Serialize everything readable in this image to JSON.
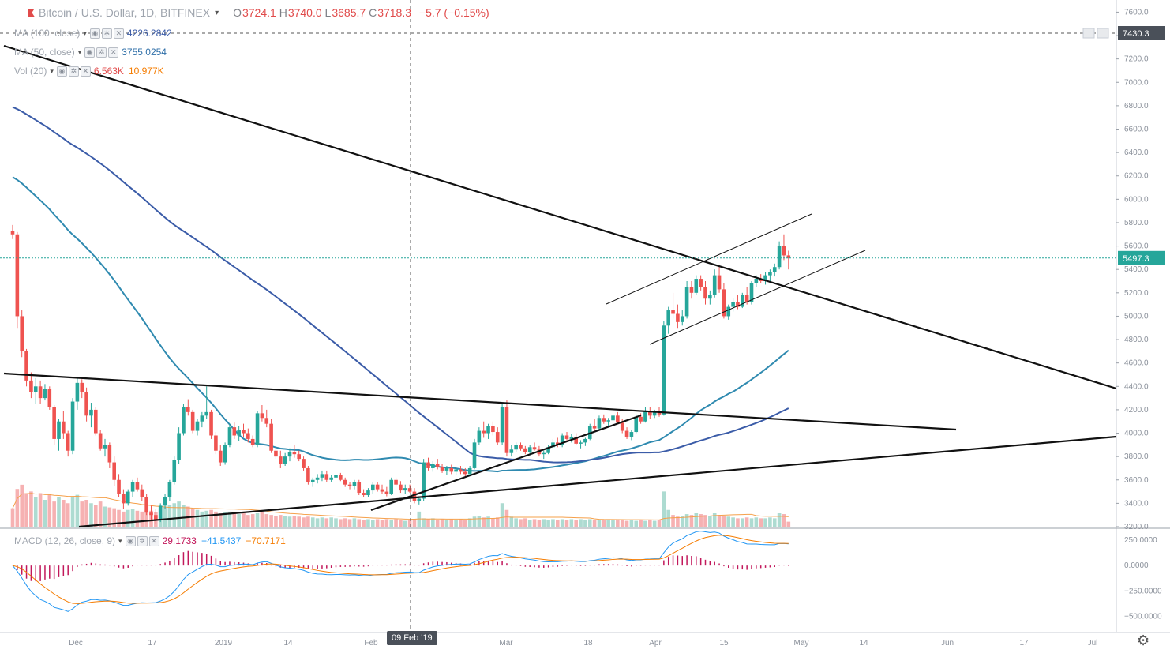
{
  "header": {
    "symbol": "Bitcoin / U.S. Dollar, 1D, BITFINEX",
    "open_label": "O",
    "open": "3724.1",
    "high_label": "H",
    "high": "3740.0",
    "low_label": "L",
    "low": "3685.7",
    "close_label": "C",
    "close": "3718.3",
    "change": "−5.7 (−0.15%)"
  },
  "indicators": {
    "ma100": {
      "label": "MA (100, close)",
      "value": "4226.2842"
    },
    "ma50": {
      "label": "MA (50, close)",
      "value": "3755.0254"
    },
    "vol": {
      "label": "Vol (20)",
      "value1": "6.563K",
      "value2": "10.977K"
    },
    "macd": {
      "label": "MACD (12, 26, close, 9)",
      "value1": "29.1733",
      "value2": "−41.5437",
      "value3": "−70.7171"
    }
  },
  "crosshair": {
    "date_label": "09 Feb '19",
    "price_label": "7430.3"
  },
  "last_price_label": "5497.3",
  "colors": {
    "up": "#26a69a",
    "down": "#ef5350",
    "ma50": "#2f8ab0",
    "ma100": "#3b5ca8",
    "macd": "#2196f3",
    "signal": "#f57c00",
    "hist": "#c2185b",
    "last": "#26a69a"
  },
  "chart_data": {
    "type": "candlestick",
    "price_axis_ticks": [
      "7600.0",
      "7400.0",
      "7200.0",
      "7000.0",
      "6800.0",
      "6600.0",
      "6400.0",
      "6200.0",
      "6000.0",
      "5800.0",
      "5600.0",
      "5400.0",
      "5200.0",
      "5000.0",
      "4800.0",
      "4600.0",
      "4400.0",
      "4200.0",
      "4000.0",
      "3800.0",
      "3600.0",
      "3400.0",
      "3200.0"
    ],
    "price_ylim": [
      3200,
      7650
    ],
    "macd_axis_ticks": [
      "250.0000",
      "0.0000",
      "−250.0000",
      "−500.0000"
    ],
    "macd_ylim": [
      -650,
      350
    ],
    "time_labels": [
      "Dec",
      "17",
      "2019",
      "14",
      "Feb",
      "Mar",
      "18",
      "Apr",
      "15",
      "May",
      "14",
      "Jun",
      "17",
      "Jul"
    ],
    "candles": [
      [
        5730,
        5780,
        5660,
        5700
      ],
      [
        5700,
        5720,
        4900,
        5000
      ],
      [
        5000,
        5050,
        4650,
        4700
      ],
      [
        4700,
        4720,
        4400,
        4450
      ],
      [
        4450,
        4520,
        4300,
        4350
      ],
      [
        4350,
        4470,
        4250,
        4400
      ],
      [
        4400,
        4450,
        4250,
        4300
      ],
      [
        4300,
        4420,
        4280,
        4380
      ],
      [
        4380,
        4400,
        4200,
        4220
      ],
      [
        4220,
        4240,
        3900,
        3950
      ],
      [
        3950,
        4120,
        3850,
        4100
      ],
      [
        4100,
        4190,
        3950,
        4000
      ],
      [
        4000,
        4020,
        3800,
        3850
      ],
      [
        3850,
        4300,
        3820,
        4270
      ],
      [
        4270,
        4470,
        4200,
        4430
      ],
      [
        4430,
        4460,
        4300,
        4350
      ],
      [
        4350,
        4390,
        4100,
        4150
      ],
      [
        4150,
        4260,
        4050,
        4200
      ],
      [
        4200,
        4220,
        3980,
        4000
      ],
      [
        4000,
        4030,
        3850,
        3870
      ],
      [
        3870,
        3950,
        3800,
        3900
      ],
      [
        3900,
        3920,
        3700,
        3750
      ],
      [
        3750,
        3800,
        3550,
        3600
      ],
      [
        3600,
        3650,
        3450,
        3480
      ],
      [
        3480,
        3520,
        3350,
        3400
      ],
      [
        3400,
        3520,
        3380,
        3500
      ],
      [
        3500,
        3600,
        3450,
        3580
      ],
      [
        3580,
        3620,
        3500,
        3520
      ],
      [
        3520,
        3560,
        3420,
        3450
      ],
      [
        3450,
        3480,
        3300,
        3320
      ],
      [
        3320,
        3380,
        3250,
        3300
      ],
      [
        3300,
        3350,
        3220,
        3260
      ],
      [
        3260,
        3400,
        3240,
        3380
      ],
      [
        3380,
        3480,
        3350,
        3450
      ],
      [
        3450,
        3600,
        3420,
        3580
      ],
      [
        3580,
        3800,
        3560,
        3770
      ],
      [
        3770,
        4050,
        3740,
        4000
      ],
      [
        4000,
        4250,
        3980,
        4220
      ],
      [
        4220,
        4290,
        4150,
        4180
      ],
      [
        4180,
        4200,
        4000,
        4020
      ],
      [
        4020,
        4120,
        3980,
        4100
      ],
      [
        4100,
        4180,
        4050,
        4150
      ],
      [
        4150,
        4400,
        4120,
        4180
      ],
      [
        4180,
        4200,
        3950,
        3980
      ],
      [
        3980,
        4010,
        3820,
        3850
      ],
      [
        3850,
        3900,
        3720,
        3750
      ],
      [
        3750,
        3920,
        3730,
        3900
      ],
      [
        3900,
        4080,
        3880,
        4050
      ],
      [
        4050,
        4090,
        3950,
        3980
      ],
      [
        3980,
        4060,
        3930,
        4030
      ],
      [
        4030,
        4080,
        3970,
        4000
      ],
      [
        4000,
        4040,
        3920,
        3950
      ],
      [
        3950,
        3980,
        3880,
        3900
      ],
      [
        3900,
        4190,
        3880,
        4170
      ],
      [
        4170,
        4240,
        4100,
        4130
      ],
      [
        4130,
        4200,
        4050,
        4080
      ],
      [
        4080,
        4120,
        3830,
        3850
      ],
      [
        3850,
        3880,
        3780,
        3800
      ],
      [
        3800,
        3850,
        3700,
        3740
      ],
      [
        3740,
        3830,
        3720,
        3800
      ],
      [
        3800,
        3870,
        3760,
        3840
      ],
      [
        3840,
        3900,
        3790,
        3820
      ],
      [
        3820,
        3850,
        3760,
        3780
      ],
      [
        3780,
        3800,
        3680,
        3700
      ],
      [
        3700,
        3720,
        3560,
        3580
      ],
      [
        3580,
        3620,
        3540,
        3600
      ],
      [
        3600,
        3650,
        3570,
        3620
      ],
      [
        3620,
        3680,
        3590,
        3650
      ],
      [
        3650,
        3680,
        3580,
        3600
      ],
      [
        3600,
        3640,
        3580,
        3620
      ],
      [
        3620,
        3660,
        3600,
        3640
      ],
      [
        3640,
        3660,
        3590,
        3600
      ],
      [
        3600,
        3620,
        3540,
        3560
      ],
      [
        3560,
        3580,
        3520,
        3550
      ],
      [
        3550,
        3600,
        3520,
        3580
      ],
      [
        3580,
        3600,
        3470,
        3490
      ],
      [
        3490,
        3520,
        3450,
        3470
      ],
      [
        3470,
        3530,
        3450,
        3510
      ],
      [
        3510,
        3580,
        3480,
        3560
      ],
      [
        3560,
        3580,
        3500,
        3520
      ],
      [
        3520,
        3560,
        3480,
        3500
      ],
      [
        3500,
        3540,
        3460,
        3480
      ],
      [
        3480,
        3620,
        3470,
        3600
      ],
      [
        3600,
        3620,
        3540,
        3560
      ],
      [
        3560,
        3590,
        3490,
        3510
      ],
      [
        3510,
        3560,
        3480,
        3530
      ],
      [
        3530,
        3560,
        3490,
        3500
      ],
      [
        3500,
        3530,
        3400,
        3420
      ],
      [
        3420,
        3460,
        3390,
        3440
      ],
      [
        3440,
        3780,
        3420,
        3750
      ],
      [
        3750,
        3790,
        3680,
        3700
      ],
      [
        3700,
        3760,
        3670,
        3740
      ],
      [
        3740,
        3780,
        3690,
        3710
      ],
      [
        3710,
        3740,
        3660,
        3680
      ],
      [
        3680,
        3720,
        3640,
        3700
      ],
      [
        3700,
        3730,
        3650,
        3670
      ],
      [
        3670,
        3710,
        3640,
        3690
      ],
      [
        3690,
        3720,
        3650,
        3670
      ],
      [
        3670,
        3700,
        3630,
        3650
      ],
      [
        3650,
        3720,
        3640,
        3700
      ],
      [
        3700,
        3950,
        3690,
        3920
      ],
      [
        3920,
        4050,
        3900,
        4020
      ],
      [
        4020,
        4100,
        3960,
        4000
      ],
      [
        4000,
        4080,
        3950,
        4060
      ],
      [
        4060,
        4100,
        3980,
        4010
      ],
      [
        4010,
        4050,
        3900,
        3920
      ],
      [
        3920,
        4250,
        3900,
        4220
      ],
      [
        4220,
        4280,
        3800,
        3830
      ],
      [
        3830,
        3900,
        3800,
        3860
      ],
      [
        3860,
        3920,
        3840,
        3900
      ],
      [
        3900,
        3920,
        3850,
        3870
      ],
      [
        3870,
        3890,
        3820,
        3840
      ],
      [
        3840,
        3900,
        3810,
        3880
      ],
      [
        3880,
        3920,
        3850,
        3860
      ],
      [
        3860,
        3890,
        3800,
        3820
      ],
      [
        3820,
        3850,
        3780,
        3830
      ],
      [
        3830,
        3900,
        3820,
        3880
      ],
      [
        3880,
        3950,
        3860,
        3920
      ],
      [
        3920,
        3960,
        3880,
        3900
      ],
      [
        3900,
        4000,
        3880,
        3980
      ],
      [
        3980,
        4010,
        3930,
        3950
      ],
      [
        3950,
        3990,
        3920,
        3970
      ],
      [
        3970,
        4000,
        3900,
        3910
      ],
      [
        3910,
        3940,
        3870,
        3920
      ],
      [
        3920,
        3960,
        3890,
        3950
      ],
      [
        3950,
        4080,
        3940,
        4060
      ],
      [
        4060,
        4120,
        4020,
        4040
      ],
      [
        4040,
        4150,
        4030,
        4130
      ],
      [
        4130,
        4160,
        4080,
        4100
      ],
      [
        4100,
        4130,
        4050,
        4110
      ],
      [
        4110,
        4180,
        4090,
        4150
      ],
      [
        4150,
        4180,
        4080,
        4090
      ],
      [
        4090,
        4120,
        4000,
        4020
      ],
      [
        4020,
        4050,
        3950,
        3970
      ],
      [
        3970,
        4030,
        3940,
        4010
      ],
      [
        4010,
        4160,
        4000,
        4140
      ],
      [
        4140,
        4170,
        4080,
        4100
      ],
      [
        4100,
        4220,
        4090,
        4190
      ],
      [
        4190,
        4220,
        4120,
        4150
      ],
      [
        4150,
        4200,
        4130,
        4180
      ],
      [
        4180,
        4220,
        4140,
        4160
      ],
      [
        4160,
        4960,
        4150,
        4920
      ],
      [
        4920,
        5080,
        4850,
        5050
      ],
      [
        5050,
        5200,
        4980,
        5020
      ],
      [
        5020,
        5100,
        4900,
        4950
      ],
      [
        4950,
        5050,
        4920,
        5000
      ],
      [
        5000,
        5300,
        4980,
        5250
      ],
      [
        5250,
        5300,
        5150,
        5200
      ],
      [
        5200,
        5350,
        5180,
        5320
      ],
      [
        5320,
        5350,
        5220,
        5250
      ],
      [
        5250,
        5300,
        5100,
        5150
      ],
      [
        5150,
        5220,
        5100,
        5180
      ],
      [
        5180,
        5400,
        5160,
        5350
      ],
      [
        5350,
        5420,
        5200,
        5230
      ],
      [
        5230,
        5280,
        4980,
        5000
      ],
      [
        5000,
        5100,
        4970,
        5080
      ],
      [
        5080,
        5150,
        5040,
        5120
      ],
      [
        5120,
        5180,
        5060,
        5080
      ],
      [
        5080,
        5200,
        5070,
        5180
      ],
      [
        5180,
        5250,
        5100,
        5120
      ],
      [
        5120,
        5300,
        5100,
        5280
      ],
      [
        5280,
        5350,
        5250,
        5320
      ],
      [
        5320,
        5360,
        5280,
        5300
      ],
      [
        5300,
        5380,
        5270,
        5350
      ],
      [
        5350,
        5400,
        5300,
        5380
      ],
      [
        5380,
        5450,
        5340,
        5420
      ],
      [
        5420,
        5640,
        5400,
        5600
      ],
      [
        5600,
        5700,
        5480,
        5520
      ],
      [
        5520,
        5560,
        5400,
        5497
      ]
    ],
    "volume": [
      2.2,
      4.5,
      5,
      4,
      4.2,
      3.5,
      4,
      3.2,
      3.8,
      3,
      3.5,
      3.2,
      2.8,
      3.6,
      3.8,
      3,
      3.2,
      2.8,
      2.6,
      3,
      2.4,
      2.3,
      2.2,
      2,
      1.8,
      2,
      2.1,
      1.9,
      1.8,
      2,
      1.9,
      1.7,
      2.2,
      2.4,
      2.6,
      2.8,
      3,
      2.6,
      2.4,
      2.2,
      2,
      1.8,
      1.9,
      2,
      1.8,
      1.6,
      1.7,
      1.8,
      1.6,
      1.5,
      1.6,
      1.4,
      1.5,
      1.6,
      1.7,
      1.5,
      1.4,
      1.3,
      1.4,
      1.3,
      1.2,
      1.3,
      1.2,
      1.1,
      1.2,
      1.1,
      1.0,
      1.1,
      1.0,
      1.1,
      1.0,
      0.9,
      1.0,
      0.9,
      1.0,
      0.9,
      0.8,
      0.9,
      0.8,
      0.9,
      0.8,
      0.9,
      0.8,
      0.9,
      0.8,
      0.7,
      0.8,
      0.9,
      1.8,
      1.0,
      0.9,
      1.0,
      0.8,
      0.9,
      0.8,
      0.9,
      0.8,
      0.9,
      0.8,
      1.0,
      1.2,
      1.3,
      1.1,
      1.2,
      1.0,
      1.1,
      2.8,
      2.0,
      1.2,
      1.0,
      0.9,
      1.0,
      0.8,
      0.9,
      0.8,
      0.9,
      0.8,
      0.9,
      0.8,
      0.9,
      0.8,
      0.9,
      0.8,
      0.9,
      0.8,
      0.9,
      0.8,
      0.9,
      0.8,
      0.9,
      0.8,
      0.9,
      0.8,
      0.7,
      0.8,
      0.7,
      0.8,
      0.7,
      0.8,
      0.7,
      0.8,
      4.2,
      2.0,
      1.4,
      1.2,
      1.3,
      1.5,
      1.4,
      1.6,
      1.5,
      1.4,
      1.3,
      1.6,
      1.4,
      1.3,
      1.2,
      1.1,
      1.0,
      1.0,
      1.1,
      1.0,
      1.1,
      1.0,
      1.0,
      1.1,
      1.0,
      1.6,
      1.5,
      0.6
    ]
  }
}
